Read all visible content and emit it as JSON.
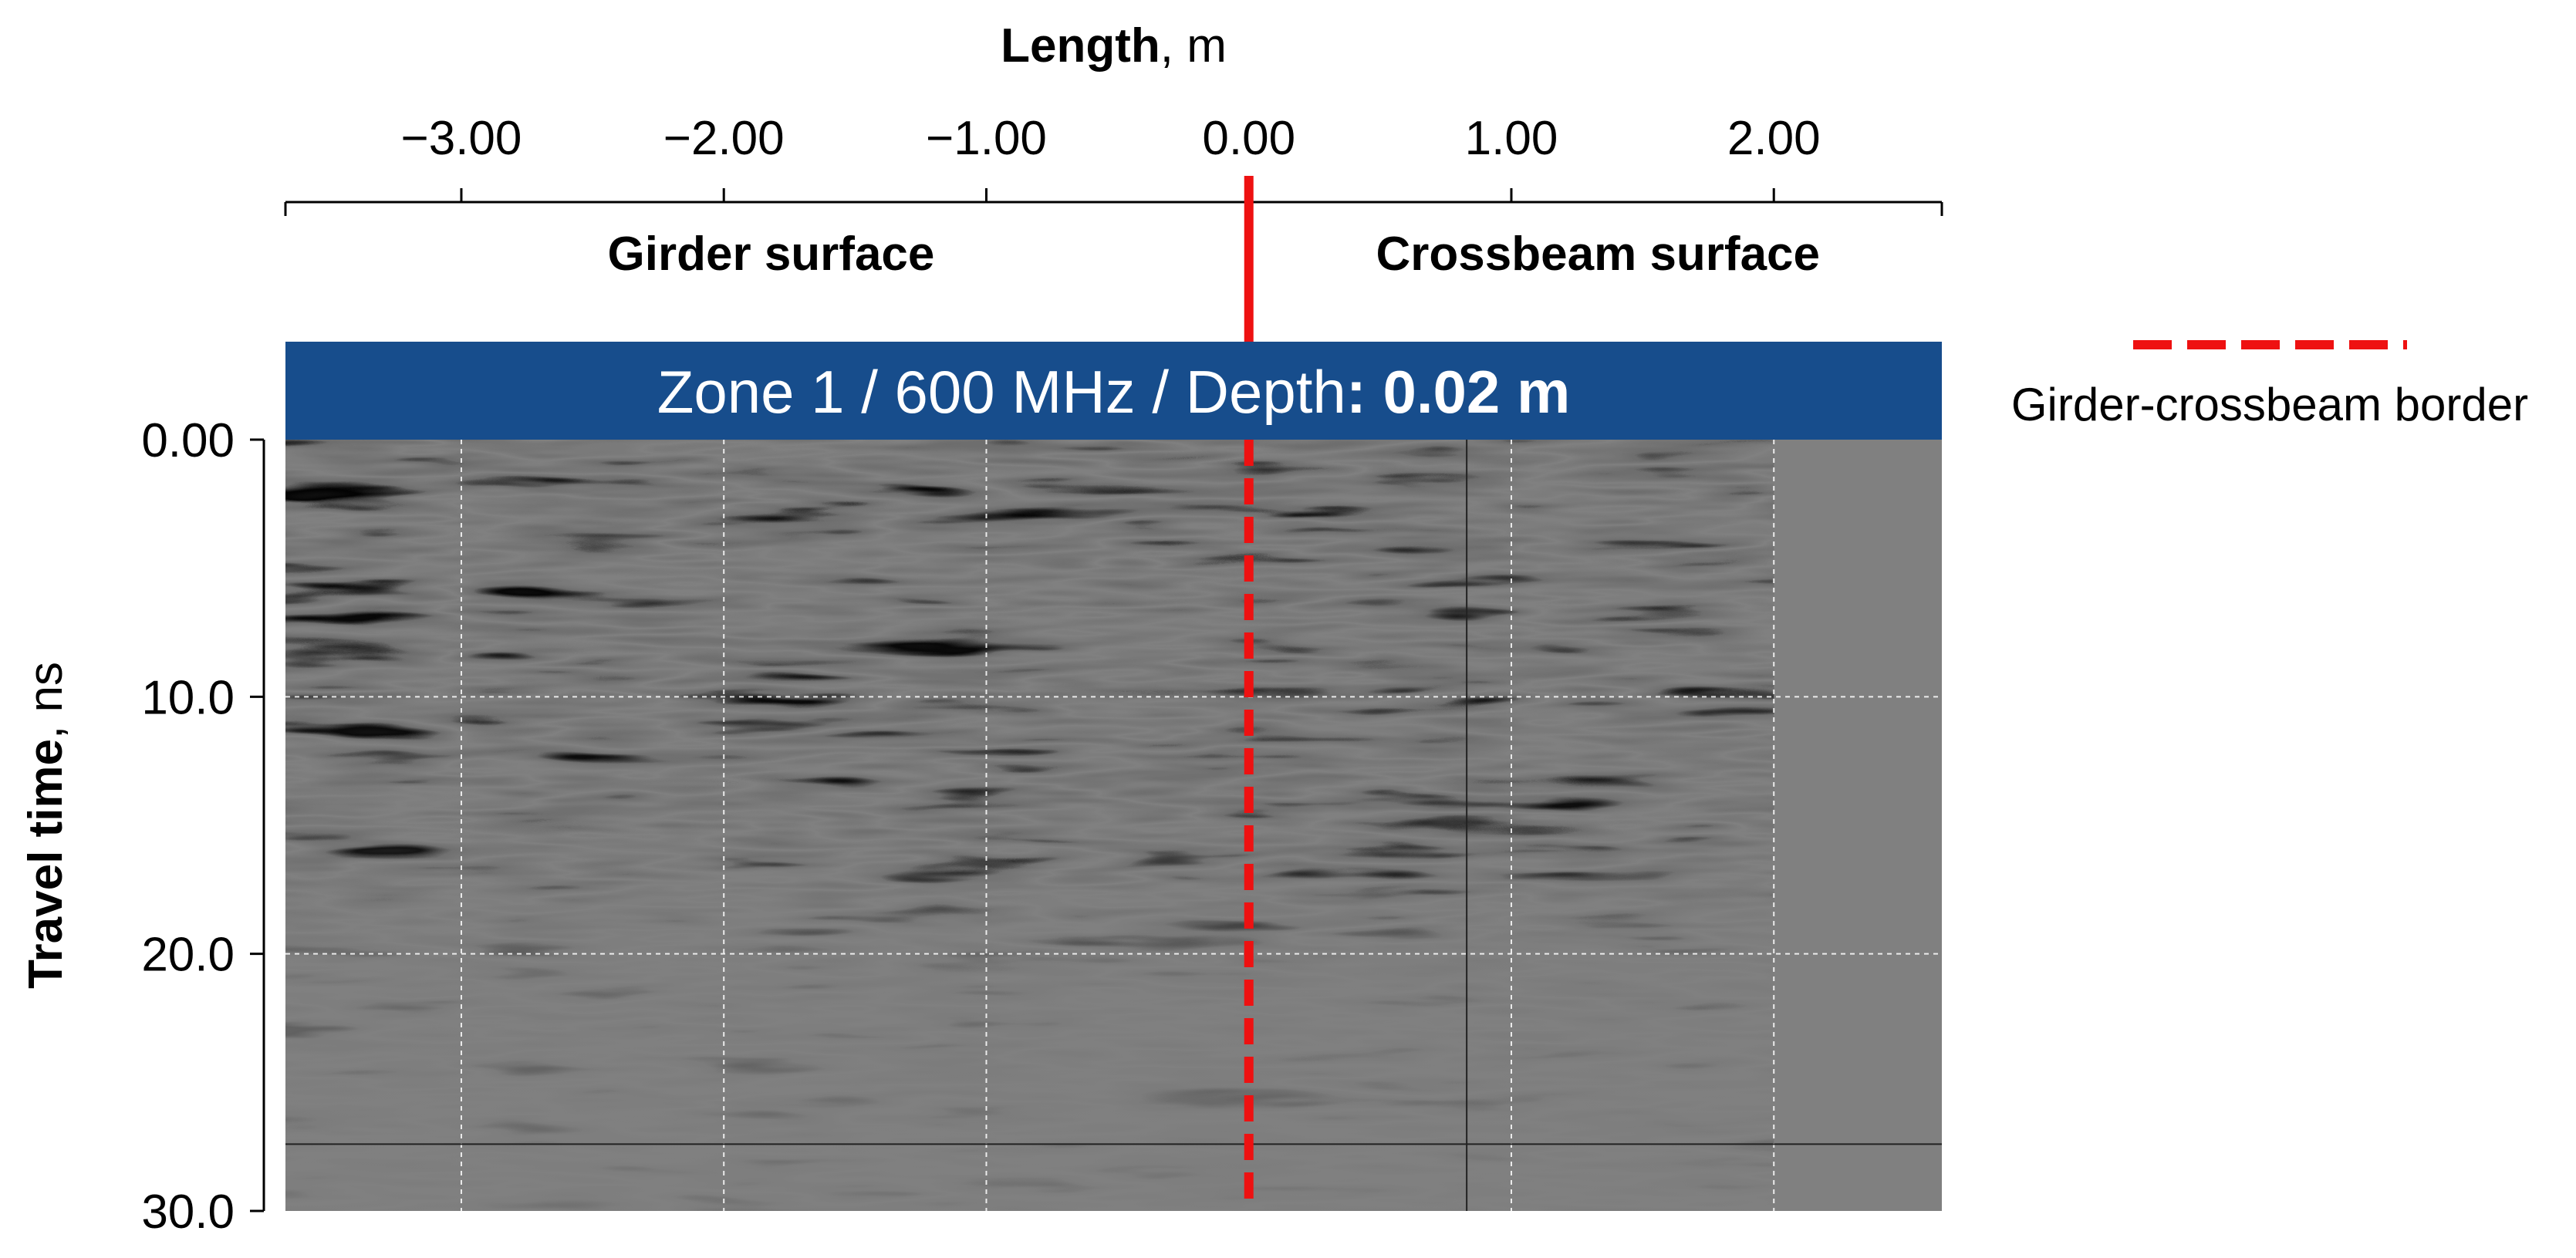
{
  "chart_data": {
    "type": "heatmap",
    "title": "Zone 1 / 600 MHz / Depth: 0.02 m",
    "title_parts": {
      "prefix": "Zone 1 / 600 MHz / Depth",
      "colon": ": ",
      "value": "0.02 m"
    },
    "xlabel": {
      "bold": "Length",
      "rest": ", m"
    },
    "ylabel": {
      "bold": "Travel time",
      "rest": ", ns"
    },
    "x_axis_position": "top",
    "xlim": [
      -3.67,
      2.64
    ],
    "ylim": [
      0.0,
      30.0
    ],
    "y_inverted": true,
    "x_ticks": [
      -3.0,
      -2.0,
      -1.0,
      0.0,
      1.0,
      2.0
    ],
    "x_tick_labels": [
      "−3.00",
      "−2.00",
      "−1.00",
      "0.00",
      "1.00",
      "2.00"
    ],
    "y_ticks": [
      0.0,
      10.0,
      20.0,
      30.0
    ],
    "y_tick_labels": [
      "0.00",
      "10.0",
      "20.0",
      "30.0"
    ],
    "data_extent_x": [
      -3.67,
      2.0
    ],
    "no_data_fill": "#808080",
    "surface_labels": [
      {
        "text": "Girder surface",
        "x_center": -1.82
      },
      {
        "text": "Crossbeam surface",
        "x_center": 1.33
      }
    ],
    "border": {
      "x": 0.0,
      "label": "Girder-crossbeam border",
      "color": "#ee1111"
    },
    "vertical_guide_x": 0.83,
    "horizontal_guide_y": 27.4,
    "grid": true
  },
  "colors": {
    "banner": "#174d8c",
    "border": "#ee1111",
    "plot_background": "#808080"
  }
}
